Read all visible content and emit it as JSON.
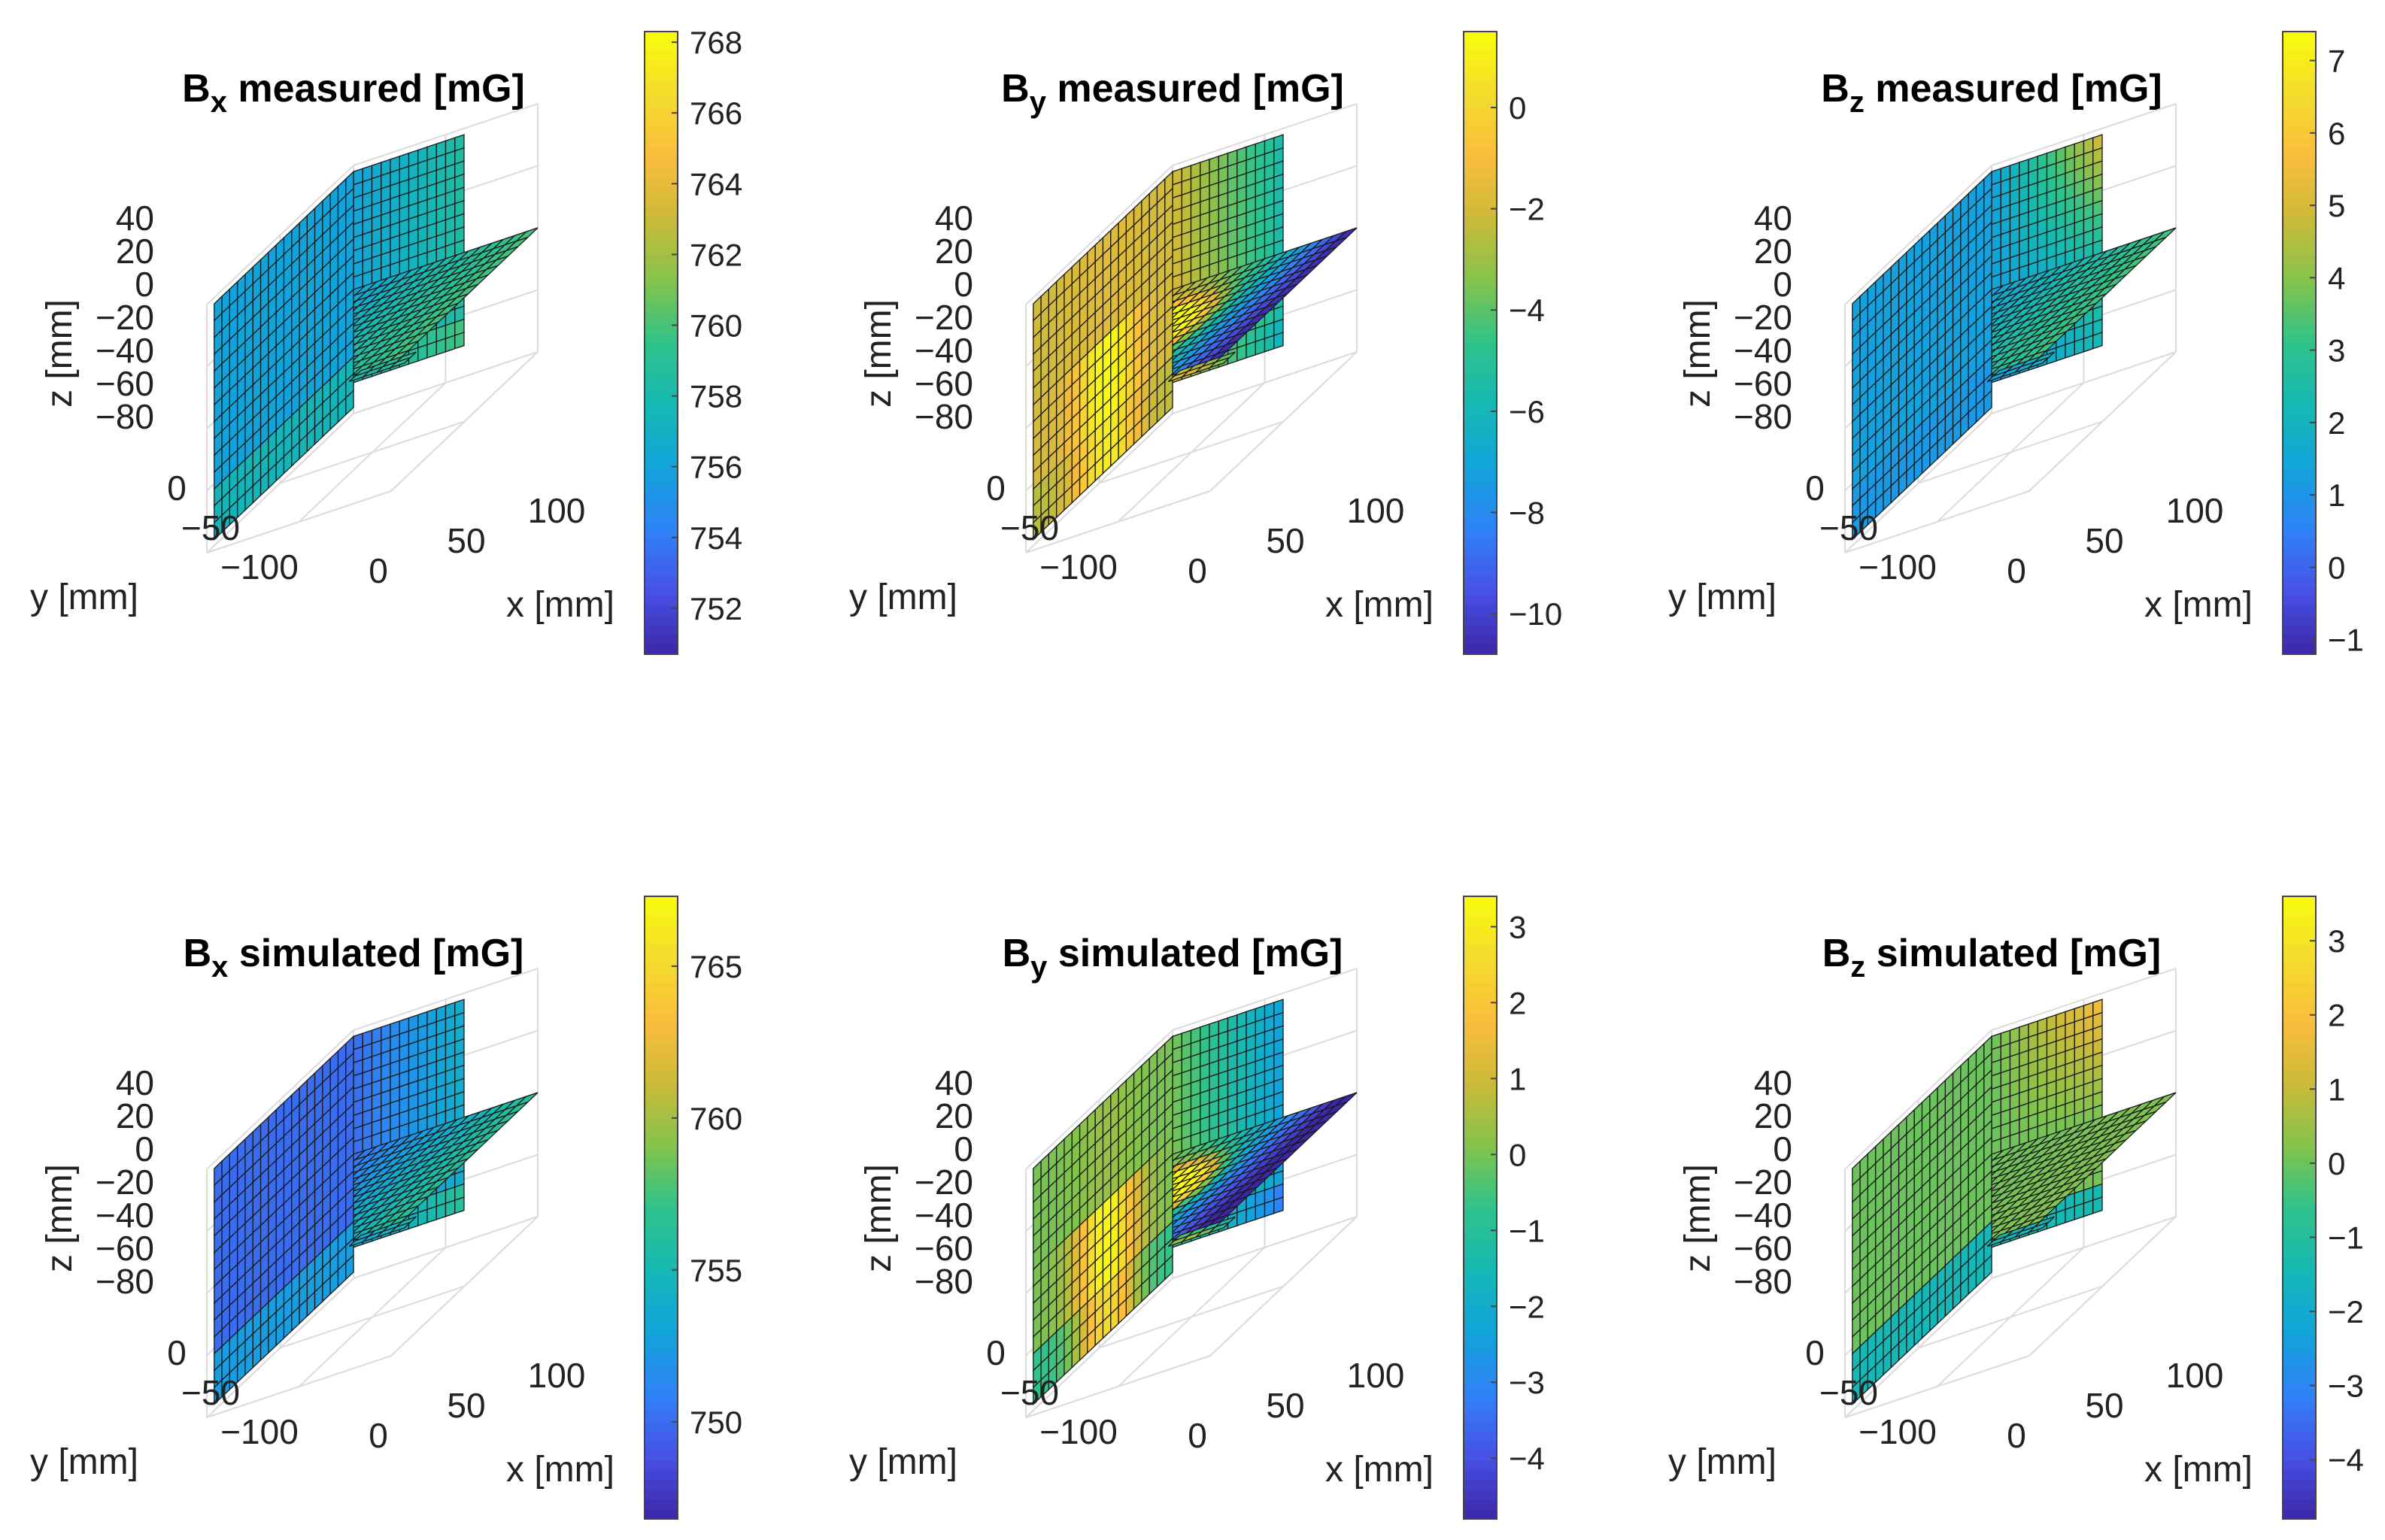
{
  "figure": {
    "rows": 2,
    "cols": 3
  },
  "colormap": [
    "#3e26a8",
    "#4751e6",
    "#2f82f7",
    "#11a4db",
    "#15b8b4",
    "#2fc38a",
    "#84c34b",
    "#cdba38",
    "#fbbd3d",
    "#f3dc2c",
    "#f9fb0e"
  ],
  "chart_data": [
    {
      "type": "surface3d",
      "name": "bx-measured",
      "title": {
        "main": "B",
        "sub": "x",
        "rest": " measured [mG]"
      },
      "xlabel": "x [mm]",
      "ylabel": "y [mm]",
      "zlabel": "z [mm]",
      "xticks": [
        "0",
        "50",
        "100"
      ],
      "yticks": [
        "0",
        "−50",
        "−100"
      ],
      "zticks": [
        "40",
        "20",
        "0",
        "−20",
        "−40",
        "−60",
        "−80"
      ],
      "colorbar": {
        "min": 750.7,
        "max": 768.3,
        "ticks": [
          752,
          754,
          756,
          758,
          760,
          762,
          764,
          766,
          768
        ],
        "tick_labels": [
          "752",
          "754",
          "756",
          "758",
          "760",
          "762",
          "764",
          "766",
          "768"
        ]
      },
      "field": {
        "base": 756.0,
        "gx": 4.0,
        "gy": 0,
        "gz": 0,
        "hot": 0,
        "tip": 0,
        "bottom": 3.0
      }
    },
    {
      "type": "surface3d",
      "name": "by-measured",
      "title": {
        "main": "B",
        "sub": "y",
        "rest": " measured [mG]"
      },
      "xlabel": "x [mm]",
      "ylabel": "y [mm]",
      "zlabel": "z [mm]",
      "xticks": [
        "0",
        "50",
        "100"
      ],
      "yticks": [
        "0",
        "−50",
        "−100"
      ],
      "zticks": [
        "40",
        "20",
        "0",
        "−20",
        "−40",
        "−60",
        "−80"
      ],
      "colorbar": {
        "min": -10.8,
        "max": 1.5,
        "ticks": [
          -10,
          -8,
          -6,
          -4,
          -2,
          0
        ],
        "tick_labels": [
          "−10",
          "−8",
          "−6",
          "−4",
          "−2",
          "0"
        ]
      },
      "field": {
        "base": -2.0,
        "gx": -6.0,
        "gy": 0,
        "gz": 0,
        "hot": 2.3,
        "tip": -3.0,
        "bottom": -1.0
      }
    },
    {
      "type": "surface3d",
      "name": "bz-measured",
      "title": {
        "main": "B",
        "sub": "z",
        "rest": " measured [mG]"
      },
      "xlabel": "x [mm]",
      "ylabel": "y [mm]",
      "zlabel": "z [mm]",
      "xticks": [
        "0",
        "50",
        "100"
      ],
      "yticks": [
        "0",
        "−50",
        "−100"
      ],
      "zticks": [
        "40",
        "20",
        "0",
        "−20",
        "−40",
        "−60",
        "−80"
      ],
      "colorbar": {
        "min": -1.2,
        "max": 7.4,
        "ticks": [
          -1,
          0,
          1,
          2,
          3,
          4,
          5,
          6,
          7
        ],
        "tick_labels": [
          "−1",
          "0",
          "1",
          "2",
          "3",
          "4",
          "5",
          "6",
          "7"
        ]
      },
      "field": {
        "base": 1.3,
        "gx": 2.0,
        "gy": 0,
        "gz": 4.5,
        "hot": 0,
        "tip": 0,
        "bottom": -0.4
      }
    },
    {
      "type": "surface3d",
      "name": "bx-simulated",
      "title": {
        "main": "B",
        "sub": "x",
        "rest": " simulated [mG]"
      },
      "xlabel": "x [mm]",
      "ylabel": "y [mm]",
      "zlabel": "z [mm]",
      "xticks": [
        "0",
        "50",
        "100"
      ],
      "yticks": [
        "0",
        "−50",
        "−100"
      ],
      "zticks": [
        "40",
        "20",
        "0",
        "−20",
        "−40",
        "−60",
        "−80"
      ],
      "colorbar": {
        "min": 746.8,
        "max": 767.3,
        "ticks": [
          750,
          755,
          760,
          765
        ],
        "tick_labels": [
          "750",
          "755",
          "760",
          "765"
        ]
      },
      "field": {
        "base": 750.0,
        "gx": 6.5,
        "gy": 0,
        "gz": 0,
        "hot": 0,
        "tip": 0,
        "bottom": 5.0
      }
    },
    {
      "type": "surface3d",
      "name": "by-simulated",
      "title": {
        "main": "B",
        "sub": "y",
        "rest": " simulated [mG]"
      },
      "xlabel": "x [mm]",
      "ylabel": "y [mm]",
      "zlabel": "z [mm]",
      "xticks": [
        "0",
        "50",
        "100"
      ],
      "yticks": [
        "0",
        "−50",
        "−100"
      ],
      "zticks": [
        "40",
        "20",
        "0",
        "−20",
        "−40",
        "−60",
        "−80"
      ],
      "colorbar": {
        "min": -4.8,
        "max": 3.4,
        "ticks": [
          -4,
          -3,
          -2,
          -1,
          0,
          1,
          2,
          3
        ],
        "tick_labels": [
          "−4",
          "−3",
          "−2",
          "−1",
          "0",
          "1",
          "2",
          "3"
        ]
      },
      "field": {
        "base": 0.0,
        "gx": -4.0,
        "gy": 0,
        "gz": 0,
        "hot": 2.2,
        "tip": -1.5,
        "bottom": -1.5
      }
    },
    {
      "type": "surface3d",
      "name": "bz-simulated",
      "title": {
        "main": "B",
        "sub": "z",
        "rest": " simulated [mG]"
      },
      "xlabel": "x [mm]",
      "ylabel": "y [mm]",
      "zlabel": "z [mm]",
      "xticks": [
        "0",
        "50",
        "100"
      ],
      "yticks": [
        "0",
        "−50",
        "−100"
      ],
      "zticks": [
        "40",
        "20",
        "0",
        "−20",
        "−40",
        "−60",
        "−80"
      ],
      "colorbar": {
        "min": -4.8,
        "max": 3.6,
        "ticks": [
          -4,
          -3,
          -2,
          -1,
          0,
          1,
          2,
          3
        ],
        "tick_labels": [
          "−4",
          "−3",
          "−2",
          "−1",
          "0",
          "1",
          "2",
          "3"
        ]
      },
      "field": {
        "base": 0.0,
        "gx": 0.2,
        "gy": 0,
        "gz": 3.0,
        "hot": 0,
        "tip": 0,
        "bottom": -3.0
      }
    }
  ]
}
